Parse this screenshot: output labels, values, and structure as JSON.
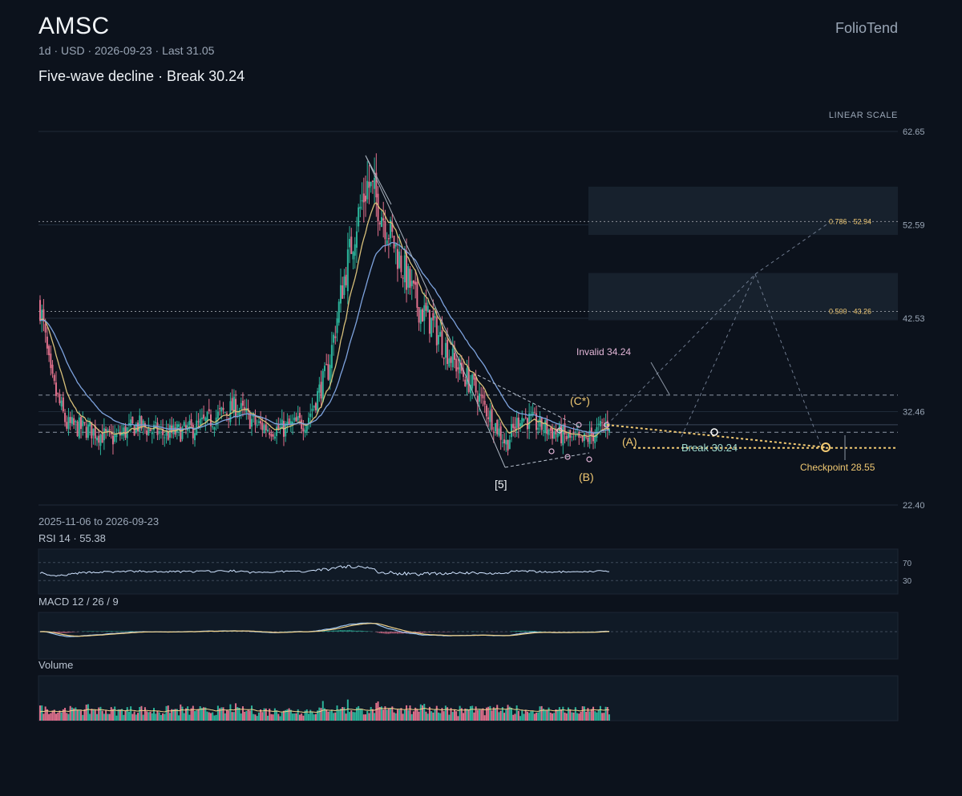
{
  "header": {
    "symbol": "AMSC",
    "subtitle": "1d · USD · 2026-09-23 · Last 31.05",
    "headline": "Five-wave decline · Break 30.24",
    "brand": "FolioTend",
    "scale": "LINEAR SCALE",
    "range": "2025-11-06 to 2026-09-23"
  },
  "colors": {
    "background": "#0c121c",
    "up": "#2bb39a",
    "down": "#e0708c",
    "ma_fast": "#d8c07a",
    "ma_slow": "#7ea3de",
    "accent": "#f0c872",
    "grid": "#1f2a38"
  },
  "chart_data": {
    "type": "candlestick",
    "y_axis": {
      "ticks": [
        "62.65",
        "52.59",
        "42.53",
        "32.46",
        "22.40"
      ],
      "ylim": [
        22.4,
        62.65
      ]
    },
    "series_shape": {
      "start": 44,
      "waypoints": [
        [
          0,
          44
        ],
        [
          6,
          36
        ],
        [
          15,
          31
        ],
        [
          28,
          30.5
        ],
        [
          40,
          29.5
        ],
        [
          55,
          31
        ],
        [
          70,
          30
        ],
        [
          85,
          30.5
        ],
        [
          95,
          31.5
        ],
        [
          110,
          33
        ],
        [
          122,
          31
        ],
        [
          135,
          30.5
        ],
        [
          150,
          31.5
        ],
        [
          162,
          37
        ],
        [
          170,
          46
        ],
        [
          178,
          53
        ],
        [
          184,
          57
        ],
        [
          190,
          55
        ],
        [
          196,
          52
        ],
        [
          204,
          48
        ],
        [
          212,
          44
        ],
        [
          220,
          42
        ],
        [
          232,
          38
        ],
        [
          244,
          35
        ],
        [
          256,
          31
        ],
        [
          262,
          29
        ],
        [
          270,
          32
        ],
        [
          280,
          31
        ],
        [
          292,
          30
        ],
        [
          304,
          29
        ],
        [
          314,
          30.5
        ],
        [
          320,
          31.3
        ]
      ]
    },
    "levels": [
      {
        "label": "0.786 · 52.94",
        "value": 52.94
      },
      {
        "label": "0.500 · 43.26",
        "value": 43.26
      }
    ],
    "zones": [
      {
        "from": 51.5,
        "to": 56.7
      },
      {
        "from": 42.3,
        "to": 47.4
      }
    ],
    "reference_lines": [
      {
        "value": 34.24,
        "style": "dashed"
      },
      {
        "value": 30.24,
        "style": "dashed"
      },
      {
        "value": 31.05,
        "style": "solid"
      },
      {
        "value": 28.55,
        "style": "dotted"
      }
    ],
    "annotations": {
      "invalid": "Invalid 34.24",
      "c_star": "(C*)",
      "wave_a": "(A)",
      "wave_b": "(B)",
      "wave_5": "[5]",
      "break": "Break 30.24",
      "checkpoint": "Checkpoint 28.55"
    },
    "rsi": {
      "label": "RSI 14 · 55.38",
      "levels": [
        "70",
        "30"
      ]
    },
    "macd": {
      "label": "MACD 12 / 26 / 9"
    },
    "volume": {
      "label": "Volume"
    }
  }
}
